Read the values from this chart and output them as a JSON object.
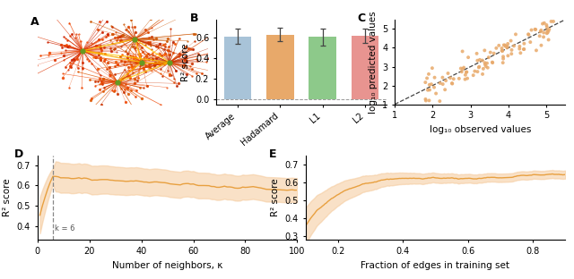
{
  "fig_width": 6.4,
  "fig_height": 3.12,
  "panel_B": {
    "categories": [
      "Average",
      "Hadamard",
      "L1",
      "L2"
    ],
    "values": [
      0.615,
      0.632,
      0.61,
      0.622
    ],
    "errors": [
      0.075,
      0.065,
      0.085,
      0.07
    ],
    "colors": [
      "#a8c3d8",
      "#e8a96a",
      "#8dc98a",
      "#e89490"
    ],
    "ylabel": "R² score",
    "ylim": [
      -0.05,
      0.78
    ],
    "yticks": [
      0.0,
      0.2,
      0.4,
      0.6
    ],
    "hline_y": 0.0,
    "label": "B"
  },
  "panel_C": {
    "xlabel": "log₁₀ observed values",
    "ylabel": "log₁₀ predicted values",
    "xlim": [
      1,
      5.5
    ],
    "ylim": [
      1,
      5.5
    ],
    "xticks": [
      1,
      2,
      3,
      4,
      5
    ],
    "yticks": [
      1,
      2,
      3,
      4,
      5
    ],
    "dot_color": "#e8a96a",
    "diag_color": "#444444",
    "label": "C"
  },
  "panel_D": {
    "xlabel": "Number of neighbors, κ",
    "ylabel": "R² score",
    "xlim": [
      0,
      100
    ],
    "ylim": [
      0.33,
      0.75
    ],
    "yticks": [
      0.4,
      0.5,
      0.6,
      0.7
    ],
    "xticks": [
      0,
      20,
      40,
      60,
      80,
      100
    ],
    "vline_x": 6,
    "vline_label": "k = 6",
    "line_color": "#e8a040",
    "fill_color": "#f5c99a",
    "label": "D"
  },
  "panel_E": {
    "xlabel": "Fraction of edges in training set",
    "ylabel": "R² score",
    "xlim": [
      0.1,
      0.9
    ],
    "ylim": [
      0.28,
      0.75
    ],
    "yticks": [
      0.3,
      0.4,
      0.5,
      0.6,
      0.7
    ],
    "xticks": [
      0.2,
      0.4,
      0.6,
      0.8
    ],
    "line_color": "#e8a040",
    "fill_color": "#f5c99a",
    "label": "E"
  },
  "background_color": "#ffffff",
  "label_fontsize": 9,
  "tick_fontsize": 7,
  "axis_label_fontsize": 7.5
}
